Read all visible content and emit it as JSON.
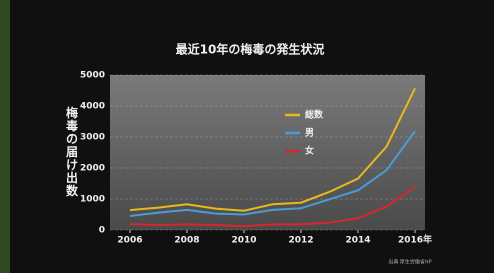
{
  "chart_data": {
    "type": "line",
    "title": "最近10年の梅毒の発生状況",
    "y_label": "梅毒の届け出数",
    "source": "出典 厚生労働省HP",
    "x": [
      2006,
      2007,
      2008,
      2009,
      2010,
      2011,
      2012,
      2013,
      2014,
      2015,
      2016
    ],
    "series": [
      {
        "name": "総数",
        "color": "#e8b91c",
        "values": [
          640,
          720,
          830,
          690,
          620,
          830,
          880,
          1230,
          1660,
          2690,
          4570
        ]
      },
      {
        "name": "男",
        "color": "#4a9bd6",
        "values": [
          450,
          560,
          650,
          530,
          500,
          650,
          700,
          990,
          1280,
          1930,
          3190
        ]
      },
      {
        "name": "女",
        "color": "#d8262e",
        "values": [
          190,
          160,
          180,
          160,
          120,
          180,
          180,
          240,
          380,
          760,
          1390
        ]
      }
    ],
    "xlim": [
      2005.3,
      2016.35
    ],
    "xticks": [
      2006,
      2008,
      2010,
      2012,
      2014,
      {
        "value": 2016,
        "label": "2016年"
      }
    ],
    "ylim": [
      0,
      5000
    ],
    "yticks": [
      0,
      1000,
      2000,
      3000,
      4000,
      5000
    ],
    "grid": true
  }
}
